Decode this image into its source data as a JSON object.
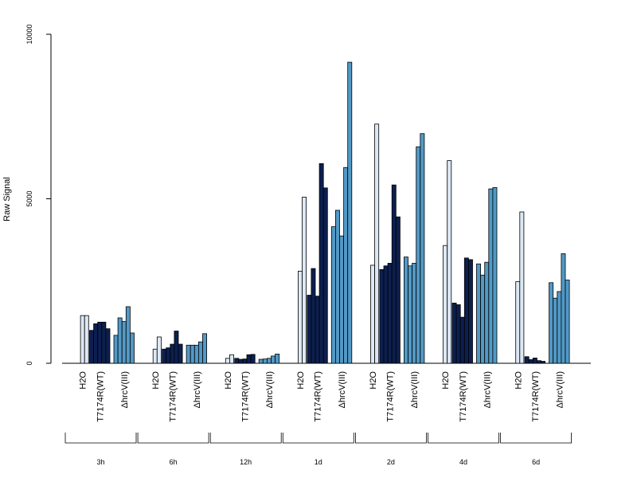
{
  "chart_data": {
    "type": "bar",
    "ylabel": "Raw Signal",
    "xlabel": "",
    "ylim": [
      0,
      10000
    ],
    "yticks": [
      0,
      5000,
      10000
    ],
    "grid": false,
    "colors": {
      "H2O": "#dde8f5",
      "T7174R(WT)": "#0c1f4f",
      "ΔhrcV(III)": "#5299c6"
    },
    "timepoints": [
      {
        "label": "3h",
        "groups": [
          {
            "name": "H2O",
            "values": [
              0,
              1450,
              1450
            ]
          },
          {
            "name": "T7174R(WT)",
            "values": [
              1000,
              1200,
              1250,
              1250,
              1050
            ]
          },
          {
            "name": "ΔhrcV(III)",
            "values": [
              850,
              1380,
              1270,
              1720,
              920
            ]
          }
        ]
      },
      {
        "label": "6h",
        "groups": [
          {
            "name": "H2O",
            "values": [
              0,
              430,
              800
            ]
          },
          {
            "name": "T7174R(WT)",
            "values": [
              430,
              470,
              580,
              980,
              580
            ]
          },
          {
            "name": "ΔhrcV(III)",
            "values": [
              550,
              550,
              550,
              650,
              900
            ]
          }
        ]
      },
      {
        "label": "12h",
        "groups": [
          {
            "name": "H2O",
            "values": [
              0,
              150,
              260
            ]
          },
          {
            "name": "T7174R(WT)",
            "values": [
              150,
              120,
              130,
              260,
              270
            ]
          },
          {
            "name": "ΔhrcV(III)",
            "values": [
              120,
              130,
              150,
              220,
              280
            ]
          }
        ]
      },
      {
        "label": "1d",
        "groups": [
          {
            "name": "H2O",
            "values": [
              0,
              2800,
              5050
            ]
          },
          {
            "name": "T7174R(WT)",
            "values": [
              2070,
              2880,
              2040,
              6070,
              5330
            ]
          },
          {
            "name": "ΔhrcV(III)",
            "values": [
              4150,
              4650,
              3870,
              5950,
              9150
            ]
          }
        ]
      },
      {
        "label": "2d",
        "groups": [
          {
            "name": "H2O",
            "values": [
              0,
              2980,
              7270
            ]
          },
          {
            "name": "T7174R(WT)",
            "values": [
              2850,
              2960,
              3040,
              5420,
              4450
            ]
          },
          {
            "name": "ΔhrcV(III)",
            "values": [
              3230,
              2960,
              3040,
              6580,
              6980
            ]
          }
        ]
      },
      {
        "label": "4d",
        "groups": [
          {
            "name": "H2O",
            "values": [
              0,
              3580,
              6160
            ]
          },
          {
            "name": "T7174R(WT)",
            "values": [
              1830,
              1780,
              1400,
              3200,
              3150
            ]
          },
          {
            "name": "ΔhrcV(III)",
            "values": [
              3020,
              2680,
              3070,
              5300,
              5340
            ]
          }
        ]
      },
      {
        "label": "6d",
        "groups": [
          {
            "name": "H2O",
            "values": [
              0,
              2480,
              4600
            ]
          },
          {
            "name": "T7174R(WT)",
            "values": [
              200,
              110,
              160,
              80,
              60
            ]
          },
          {
            "name": "ΔhrcV(III)",
            "values": [
              2450,
              1980,
              2180,
              3330,
              2530
            ]
          }
        ]
      }
    ]
  }
}
